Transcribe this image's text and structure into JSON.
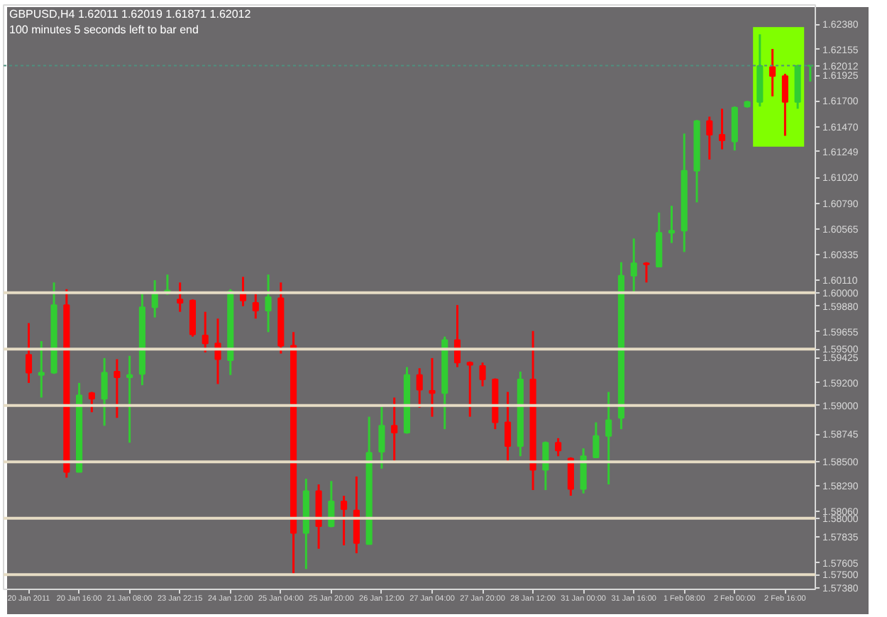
{
  "chart_data": {
    "type": "candlestick",
    "title": "GBPUSD,H4  1.62011 1.62019 1.61871 1.62012",
    "subtitle": "100 minutes 5 seconds left to bar end",
    "categories": [
      "20 Jan 2011",
      null,
      null,
      null,
      "20 Jan 16:00",
      null,
      null,
      null,
      "21 Jan 08:00",
      null,
      null,
      null,
      "23 Jan 22:15",
      null,
      null,
      null,
      "24 Jan 12:00",
      null,
      null,
      null,
      "25 Jan 04:00",
      null,
      null,
      null,
      "25 Jan 20:00",
      null,
      null,
      null,
      "26 Jan 12:00",
      null,
      null,
      null,
      "27 Jan 04:00",
      null,
      null,
      null,
      "27 Jan 20:00",
      null,
      null,
      null,
      "28 Jan 12:00",
      null,
      null,
      null,
      "31 Jan 00:00",
      null,
      null,
      null,
      "31 Jan 16:00",
      null,
      null,
      null,
      "1 Feb 08:00",
      null,
      null,
      null,
      "2 Feb 00:00",
      null,
      null,
      null,
      "2 Feb 16:00",
      null,
      null
    ],
    "ohlc": [
      [
        1.5945,
        1.5973,
        1.592,
        1.5929
      ],
      [
        1.5927,
        1.5957,
        1.5907,
        1.5929
      ],
      [
        1.5929,
        1.6009,
        1.5928,
        1.5989
      ],
      [
        1.5989,
        1.6003,
        1.5836,
        1.5841
      ],
      [
        1.5841,
        1.592,
        1.5841,
        1.5909
      ],
      [
        1.5911,
        1.5912,
        1.5894,
        1.5906
      ],
      [
        1.5906,
        1.5942,
        1.5882,
        1.5929
      ],
      [
        1.593,
        1.5941,
        1.5889,
        1.5925
      ],
      [
        1.5925,
        1.5944,
        1.5867,
        1.5927
      ],
      [
        1.5928,
        1.6001,
        1.5918,
        1.5987
      ],
      [
        1.5987,
        1.6011,
        1.5978,
        1.6
      ],
      [
        1.6,
        1.6016,
        1.5998,
        1.6002
      ],
      [
        1.5994,
        1.6009,
        1.5983,
        1.5991
      ],
      [
        1.5993,
        1.5994,
        1.5961,
        1.5963
      ],
      [
        1.5962,
        1.5983,
        1.5947,
        1.5955
      ],
      [
        1.5955,
        1.5977,
        1.5919,
        1.5941
      ],
      [
        1.594,
        1.6003,
        1.5927,
        1.6001
      ],
      [
        1.6,
        1.6014,
        1.5988,
        1.5993
      ],
      [
        1.5991,
        1.5999,
        1.5977,
        1.5984
      ],
      [
        1.5984,
        1.6016,
        1.5965,
        1.5996
      ],
      [
        1.5995,
        1.6009,
        1.5946,
        1.5953
      ],
      [
        1.5953,
        1.5965,
        1.5749,
        1.5787
      ],
      [
        1.5787,
        1.5835,
        1.5755,
        1.5824
      ],
      [
        1.5824,
        1.583,
        1.5773,
        1.5793
      ],
      [
        1.5793,
        1.5833,
        1.5792,
        1.5815
      ],
      [
        1.5815,
        1.582,
        1.5776,
        1.5808
      ],
      [
        1.5807,
        1.5837,
        1.5769,
        1.5778
      ],
      [
        1.5777,
        1.589,
        1.5777,
        1.5858
      ],
      [
        1.5859,
        1.59,
        1.5844,
        1.5882
      ],
      [
        1.5882,
        1.5907,
        1.5851,
        1.5876
      ],
      [
        1.5876,
        1.5934,
        1.5875,
        1.5927
      ],
      [
        1.5927,
        1.5933,
        1.5898,
        1.5914
      ],
      [
        1.5913,
        1.5942,
        1.589,
        1.5911
      ],
      [
        1.5911,
        1.5961,
        1.5879,
        1.5958
      ],
      [
        1.5958,
        1.5989,
        1.5934,
        1.5938
      ],
      [
        1.5938,
        1.5939,
        1.589,
        1.5936
      ],
      [
        1.5935,
        1.5938,
        1.5917,
        1.5923
      ],
      [
        1.5923,
        1.5924,
        1.5879,
        1.5885
      ],
      [
        1.5885,
        1.5912,
        1.5851,
        1.5864
      ],
      [
        1.5864,
        1.593,
        1.5855,
        1.5923
      ],
      [
        1.5923,
        1.5966,
        1.5825,
        1.5843
      ],
      [
        1.5843,
        1.5868,
        1.5825,
        1.5867
      ],
      [
        1.5867,
        1.5871,
        1.5855,
        1.586
      ],
      [
        1.5853,
        1.5854,
        1.582,
        1.5826
      ],
      [
        1.5826,
        1.5862,
        1.5822,
        1.5855
      ],
      [
        1.5854,
        1.5885,
        1.5854,
        1.5873
      ],
      [
        1.5873,
        1.5912,
        1.583,
        1.5887
      ],
      [
        1.5889,
        1.6027,
        1.5879,
        1.6015
      ],
      [
        1.6015,
        1.6048,
        1.6001,
        1.6026
      ],
      [
        1.6026,
        1.6027,
        1.6009,
        1.6025
      ],
      [
        1.6023,
        1.6071,
        1.6023,
        1.6053
      ],
      [
        1.6053,
        1.6077,
        1.6044,
        1.6055
      ],
      [
        1.6055,
        1.6141,
        1.6036,
        1.6108
      ],
      [
        1.6108,
        1.6153,
        1.608,
        1.6152
      ],
      [
        1.6152,
        1.6156,
        1.6118,
        1.614
      ],
      [
        1.614,
        1.6163,
        1.6127,
        1.6135
      ],
      [
        1.6134,
        1.6165,
        1.6126,
        1.6164
      ],
      [
        1.6165,
        1.617,
        1.6164,
        1.6169
      ],
      [
        1.6169,
        1.6229,
        1.6165,
        1.6201
      ],
      [
        1.62,
        1.6216,
        1.6174,
        1.6192
      ],
      [
        1.6192,
        1.6194,
        1.6139,
        1.6169
      ],
      [
        1.6169,
        1.6202,
        1.6163,
        1.6201
      ],
      [
        1.62011,
        1.62019,
        1.61871,
        1.62012
      ]
    ],
    "colors": [
      "#ff0000",
      "#32cd32",
      "#32cd32",
      "#ff0000",
      "#32cd32",
      "#ff0000",
      "#32cd32",
      "#ff0000",
      "#32cd32",
      "#32cd32",
      "#32cd32",
      "#32cd32",
      "#ff0000",
      "#ff0000",
      "#ff0000",
      "#ff0000",
      "#32cd32",
      "#ff0000",
      "#ff0000",
      "#32cd32",
      "#ff0000",
      "#ff0000",
      "#32cd32",
      "#ff0000",
      "#32cd32",
      "#ff0000",
      "#ff0000",
      "#32cd32",
      "#32cd32",
      "#ff0000",
      "#32cd32",
      "#ff0000",
      "#ff0000",
      "#32cd32",
      "#ff0000",
      "#ff0000",
      "#ff0000",
      "#ff0000",
      "#ff0000",
      "#32cd32",
      "#ff0000",
      "#32cd32",
      "#ff0000",
      "#ff0000",
      "#32cd32",
      "#32cd32",
      "#32cd32",
      "#32cd32",
      "#32cd32",
      "#ff0000",
      "#32cd32",
      "#32cd32",
      "#32cd32",
      "#32cd32",
      "#ff0000",
      "#ff0000",
      "#32cd32",
      "#32cd32",
      "#32cd32",
      "#ff0000",
      "#ff0000",
      "#32cd32",
      "#32cd32"
    ],
    "ylim": [
      1.5737,
      1.6255
    ],
    "yticks": [
      {
        "value": 1.6238,
        "label": "1.62380"
      },
      {
        "value": 1.62155,
        "label": "1.62155"
      },
      {
        "value": 1.61925,
        "label": "1.61925"
      },
      {
        "value": 1.617,
        "label": "1.61700"
      },
      {
        "value": 1.6147,
        "label": "1.61470"
      },
      {
        "value": 1.61249,
        "label": "1.61249"
      },
      {
        "value": 1.6102,
        "label": "1.61020"
      },
      {
        "value": 1.6079,
        "label": "1.60790"
      },
      {
        "value": 1.60565,
        "label": "1.60565"
      },
      {
        "value": 1.60335,
        "label": "1.60335"
      },
      {
        "value": 1.6011,
        "label": "1.60110"
      },
      {
        "value": 1.5988,
        "label": "1.59880"
      },
      {
        "value": 1.59655,
        "label": "1.59655"
      },
      {
        "value": 1.59425,
        "label": "1.59425"
      },
      {
        "value": 1.592,
        "label": "1.59200"
      },
      {
        "value": 1.58745,
        "label": "1.58745"
      },
      {
        "value": 1.5829,
        "label": "1.58290"
      },
      {
        "value": 1.5806,
        "label": "1.58060"
      },
      {
        "value": 1.57835,
        "label": "1.57835"
      },
      {
        "value": 1.57605,
        "label": "1.57605"
      },
      {
        "value": 1.5738,
        "label": "1.57380"
      }
    ],
    "ref_lines": [
      {
        "axis": "y",
        "value": 1.6,
        "label": "1.60000",
        "color": "#e6dcc4"
      },
      {
        "axis": "y",
        "value": 1.595,
        "label": "1.59500",
        "color": "#e6dcc4"
      },
      {
        "axis": "y",
        "value": 1.59,
        "label": "1.59000",
        "color": "#e6dcc4"
      },
      {
        "axis": "y",
        "value": 1.585,
        "label": "1.58500",
        "color": "#e6dcc4"
      },
      {
        "axis": "y",
        "value": 1.58,
        "label": "1.58000",
        "color": "#e6dcc4"
      },
      {
        "axis": "y",
        "value": 1.575,
        "label": "1.57500",
        "color": "#e6dcc4"
      },
      {
        "axis": "y",
        "value": 1.62012,
        "label": "1.62012",
        "color": "#4f8f7f",
        "line_style": "dotted"
      }
    ],
    "grid": false
  }
}
